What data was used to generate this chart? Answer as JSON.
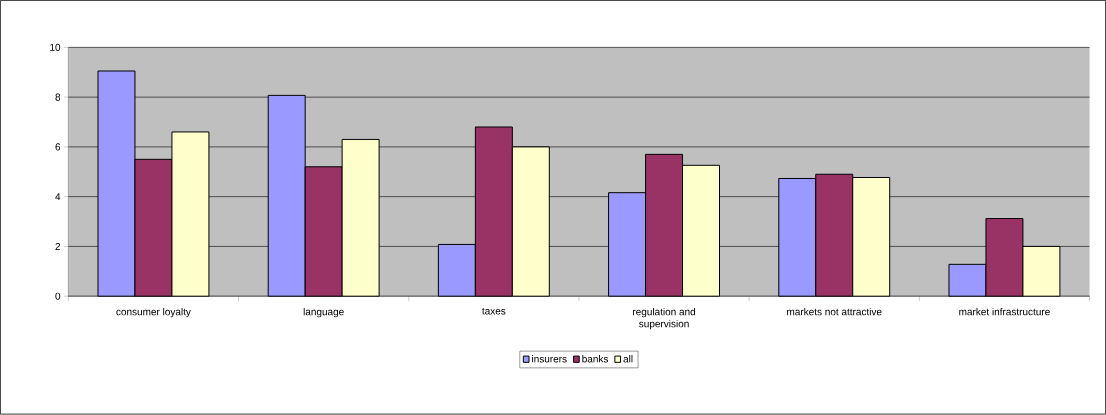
{
  "chart_data": {
    "type": "bar",
    "categories": [
      "consumer loyalty",
      "language",
      "taxes",
      "regulation and supervision",
      "markets not attractive",
      "market infrastructure"
    ],
    "series": [
      {
        "name": "insurers",
        "color": "#9999ff",
        "values": [
          9.05,
          8.07,
          2.08,
          4.16,
          4.73,
          1.28
        ]
      },
      {
        "name": "banks",
        "color": "#993366",
        "values": [
          5.5,
          5.2,
          6.8,
          5.7,
          4.9,
          3.12
        ]
      },
      {
        "name": "all",
        "color": "#ffffcc",
        "values": [
          6.6,
          6.3,
          6.0,
          5.26,
          4.77,
          2.0
        ]
      }
    ],
    "ylim": [
      0,
      10
    ],
    "yticks": [
      0,
      2,
      4,
      6,
      8,
      10
    ],
    "grid": "y",
    "legend": "bottom"
  }
}
